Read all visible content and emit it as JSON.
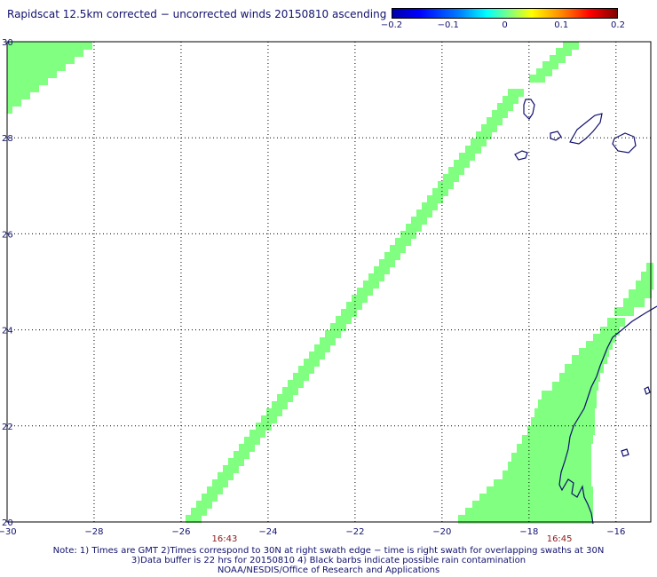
{
  "title": "Rapidscat 12.5km corrected − uncorrected winds 20150810 ascending",
  "colorbar": {
    "ticks": [
      {
        "value": -0.2,
        "label": "−0.2"
      },
      {
        "value": -0.1,
        "label": "−0.1"
      },
      {
        "value": 0,
        "label": "0"
      },
      {
        "value": 0.1,
        "label": "0.1"
      },
      {
        "value": 0.2,
        "label": "0.2"
      }
    ],
    "min": -0.2,
    "max": 0.2
  },
  "axes": {
    "lon_range": [
      -30,
      -15.2
    ],
    "lat_range": [
      20,
      30
    ],
    "lon_ticks": [
      {
        "value": -30,
        "label": "−30"
      },
      {
        "value": -28,
        "label": "−28"
      },
      {
        "value": -26,
        "label": "−26"
      },
      {
        "value": -24,
        "label": "−24"
      },
      {
        "value": -22,
        "label": "−22"
      },
      {
        "value": -20,
        "label": "−20"
      },
      {
        "value": -18,
        "label": "−18"
      },
      {
        "value": -16,
        "label": "−16"
      }
    ],
    "lat_ticks": [
      {
        "value": 30,
        "label": "30"
      },
      {
        "value": 28,
        "label": "28"
      },
      {
        "value": 26,
        "label": "26"
      },
      {
        "value": 24,
        "label": "24"
      },
      {
        "value": 22,
        "label": "22"
      },
      {
        "value": 20,
        "label": "20"
      }
    ]
  },
  "swath_times": [
    {
      "lon": -25.0,
      "label": "16:43"
    },
    {
      "lon": -17.3,
      "label": "16:45"
    }
  ],
  "swath_color": "#80ff80",
  "coast_color": "#10106e",
  "notes": [
    "Note: 1) Times are GMT 2)Times correspond to 30N at right swath edge − time is right swath for overlapping swaths at 30N",
    "3)Data buffer is 22 hrs for 20150810 4) Black barbs indicate possible rain contamination",
    "NOAA/NESDIS/Office of Research and Applications"
  ]
}
